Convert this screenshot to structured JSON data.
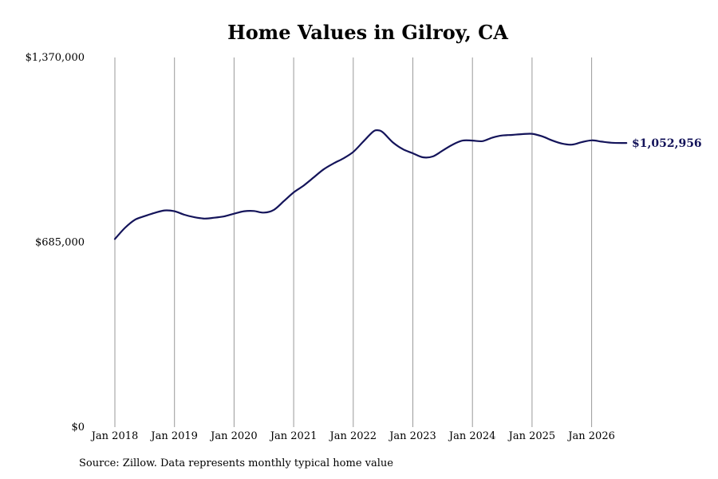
{
  "chart_data": {
    "type": "line",
    "title": "Home Values in Gilroy, CA",
    "xlabel": "",
    "ylabel": "",
    "ylim": [
      0,
      1370000
    ],
    "y_ticks": [
      0,
      685000,
      1370000
    ],
    "y_tick_labels": [
      "$0",
      "$685,000",
      "$1,370,000"
    ],
    "x_ticks": [
      "2018-01",
      "2019-01",
      "2020-01",
      "2021-01",
      "2022-01",
      "2023-01",
      "2024-01",
      "2025-01",
      "2026-01"
    ],
    "x_tick_labels": [
      "Jan 2018",
      "Jan 2019",
      "Jan 2020",
      "Jan 2021",
      "Jan 2022",
      "Jan 2023",
      "Jan 2024",
      "Jan 2025",
      "Jan 2026"
    ],
    "grid": "vertical",
    "series": [
      {
        "color": "#14145a",
        "x": [
          "2018-01",
          "2018-03",
          "2018-05",
          "2018-07",
          "2018-09",
          "2018-11",
          "2019-01",
          "2019-03",
          "2019-05",
          "2019-07",
          "2019-09",
          "2019-11",
          "2020-01",
          "2020-03",
          "2020-05",
          "2020-07",
          "2020-09",
          "2020-11",
          "2021-01",
          "2021-03",
          "2021-05",
          "2021-07",
          "2021-09",
          "2021-11",
          "2022-01",
          "2022-03",
          "2022-05",
          "2022-06",
          "2022-07",
          "2022-09",
          "2022-11",
          "2023-01",
          "2023-03",
          "2023-05",
          "2023-07",
          "2023-09",
          "2023-11",
          "2024-01",
          "2024-03",
          "2024-05",
          "2024-07",
          "2024-09",
          "2024-11",
          "2025-01",
          "2025-03",
          "2025-05",
          "2025-07",
          "2025-09",
          "2025-11",
          "2026-01",
          "2026-03",
          "2026-05",
          "2026-07",
          "2026-08"
        ],
        "values": [
          697000,
          738000,
          768000,
          782000,
          794000,
          803000,
          800000,
          787000,
          778000,
          773000,
          776000,
          781000,
          791000,
          800000,
          801000,
          795000,
          805000,
          837000,
          870000,
          895000,
          925000,
          955000,
          977000,
          996000,
          1020000,
          1058000,
          1095000,
          1100000,
          1092000,
          1055000,
          1030000,
          1015000,
          1000000,
          1003000,
          1025000,
          1047000,
          1062000,
          1062000,
          1060000,
          1073000,
          1081000,
          1083000,
          1086000,
          1087000,
          1078000,
          1063000,
          1051000,
          1047000,
          1056000,
          1063000,
          1058000,
          1054000,
          1053000,
          1052956
        ]
      }
    ],
    "end_label": "$1,052,956",
    "source": "Source: Zillow. Data represents monthly typical home value"
  }
}
